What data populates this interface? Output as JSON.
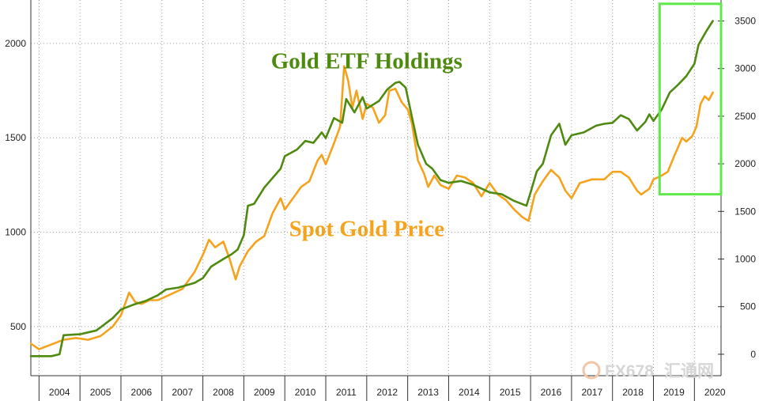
{
  "chart_data": {
    "type": "line",
    "title": "",
    "xlabel": "",
    "ylabel_left": "",
    "ylabel_right": "",
    "x_ticks": [
      "2004",
      "2005",
      "2006",
      "2007",
      "2008",
      "2009",
      "2010",
      "2011",
      "2012",
      "2013",
      "2014",
      "2015",
      "2016",
      "2017",
      "2018",
      "2019",
      "2020"
    ],
    "x_range": [
      2003.8,
      2020.65
    ],
    "left_axis": {
      "ticks": [
        "500",
        "1000",
        "1500",
        "2000"
      ],
      "ylim": [
        240,
        2230
      ]
    },
    "right_axis": {
      "ticks": [
        "0",
        "500",
        "1000",
        "1500",
        "2000",
        "2500",
        "3000",
        "3500"
      ],
      "ylim": [
        -225,
        3720
      ]
    },
    "grid": true,
    "series": [
      {
        "name": "Gold ETF Holdings",
        "axis": "right",
        "color": "#4f8a10",
        "label_anchor": {
          "x": 2012.0,
          "y": 3000
        },
        "x": [
          2003.8,
          2004.3,
          2004.5,
          2004.6,
          2005.0,
          2005.4,
          2005.8,
          2006.0,
          2006.3,
          2006.6,
          2006.9,
          2007.1,
          2007.4,
          2007.8,
          2008.0,
          2008.2,
          2008.5,
          2008.7,
          2008.85,
          2009.0,
          2009.1,
          2009.25,
          2009.5,
          2009.9,
          2010.0,
          2010.3,
          2010.5,
          2010.7,
          2010.9,
          2011.0,
          2011.2,
          2011.4,
          2011.5,
          2011.7,
          2011.9,
          2012.0,
          2012.3,
          2012.5,
          2012.7,
          2012.8,
          2012.95,
          2013.1,
          2013.25,
          2013.45,
          2013.6,
          2013.8,
          2014.0,
          2014.3,
          2014.6,
          2014.9,
          2015.0,
          2015.3,
          2015.6,
          2015.9,
          2016.0,
          2016.15,
          2016.3,
          2016.5,
          2016.7,
          2016.85,
          2017.0,
          2017.3,
          2017.6,
          2017.8,
          2018.0,
          2018.2,
          2018.4,
          2018.6,
          2018.8,
          2018.9,
          2019.0,
          2019.2,
          2019.4,
          2019.6,
          2019.8,
          2020.0,
          2020.1,
          2020.3,
          2020.45
        ],
        "values": [
          -20,
          -20,
          0,
          200,
          210,
          250,
          380,
          470,
          520,
          560,
          620,
          680,
          700,
          750,
          800,
          920,
          1000,
          1050,
          1100,
          1250,
          1560,
          1580,
          1750,
          1950,
          2080,
          2150,
          2240,
          2220,
          2330,
          2270,
          2480,
          2430,
          2680,
          2540,
          2700,
          2580,
          2660,
          2780,
          2850,
          2860,
          2800,
          2500,
          2200,
          2000,
          1950,
          1830,
          1800,
          1820,
          1780,
          1720,
          1700,
          1680,
          1610,
          1560,
          1700,
          1920,
          2000,
          2300,
          2420,
          2200,
          2300,
          2330,
          2400,
          2420,
          2430,
          2510,
          2470,
          2350,
          2440,
          2520,
          2450,
          2570,
          2750,
          2830,
          2920,
          3050,
          3250,
          3400,
          3500
        ]
      },
      {
        "name": "Spot Gold Price",
        "axis": "left",
        "color": "#f5a21d",
        "label_anchor": {
          "x": 2012.0,
          "y": 980
        },
        "x": [
          2003.8,
          2004.0,
          2004.3,
          2004.6,
          2004.9,
          2005.2,
          2005.5,
          2005.8,
          2006.0,
          2006.2,
          2006.35,
          2006.5,
          2006.7,
          2006.9,
          2007.2,
          2007.5,
          2007.8,
          2008.0,
          2008.15,
          2008.3,
          2008.5,
          2008.65,
          2008.8,
          2008.9,
          2009.1,
          2009.3,
          2009.5,
          2009.7,
          2009.9,
          2010.0,
          2010.2,
          2010.4,
          2010.6,
          2010.8,
          2010.9,
          2011.0,
          2011.2,
          2011.35,
          2011.45,
          2011.55,
          2011.65,
          2011.75,
          2011.9,
          2012.0,
          2012.15,
          2012.3,
          2012.45,
          2012.55,
          2012.7,
          2012.85,
          2013.0,
          2013.1,
          2013.25,
          2013.4,
          2013.5,
          2013.65,
          2013.8,
          2014.0,
          2014.2,
          2014.4,
          2014.6,
          2014.8,
          2015.0,
          2015.2,
          2015.4,
          2015.6,
          2015.8,
          2015.95,
          2016.1,
          2016.3,
          2016.5,
          2016.7,
          2016.85,
          2017.0,
          2017.2,
          2017.5,
          2017.8,
          2018.0,
          2018.2,
          2018.4,
          2018.6,
          2018.7,
          2018.9,
          2019.0,
          2019.2,
          2019.35,
          2019.5,
          2019.7,
          2019.8,
          2019.95,
          2020.05,
          2020.15,
          2020.25,
          2020.35,
          2020.45
        ],
        "values": [
          410,
          380,
          405,
          430,
          440,
          430,
          450,
          500,
          560,
          680,
          630,
          620,
          640,
          640,
          670,
          700,
          790,
          880,
          960,
          920,
          950,
          860,
          750,
          820,
          900,
          950,
          980,
          1100,
          1180,
          1120,
          1180,
          1240,
          1270,
          1380,
          1410,
          1360,
          1470,
          1560,
          1880,
          1800,
          1660,
          1750,
          1600,
          1680,
          1660,
          1580,
          1620,
          1750,
          1760,
          1690,
          1650,
          1580,
          1380,
          1310,
          1240,
          1300,
          1250,
          1230,
          1300,
          1290,
          1260,
          1190,
          1260,
          1200,
          1170,
          1120,
          1080,
          1060,
          1200,
          1270,
          1330,
          1290,
          1220,
          1180,
          1260,
          1280,
          1280,
          1320,
          1320,
          1290,
          1220,
          1200,
          1230,
          1280,
          1300,
          1320,
          1400,
          1500,
          1480,
          1510,
          1560,
          1680,
          1720,
          1700,
          1740
        ]
      }
    ],
    "highlight_box": {
      "x": [
        2019.15,
        2020.65
      ],
      "y_right": [
        1680,
        3680
      ]
    }
  },
  "watermark": {
    "text": "FX678",
    "cn": "汇通网"
  }
}
